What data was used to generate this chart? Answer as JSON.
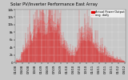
{
  "title": "Solar PV/Inverter Performance East Array",
  "legend_actual": "Actual Power Output",
  "legend_avg": "avg. daily",
  "bg_color": "#c8c8c8",
  "plot_bg": "#c8c8c8",
  "bar_color": "#dd0000",
  "avg_color": "#4444ff",
  "avg_dot_color": "#ff4444",
  "ylim": [
    0,
    14000
  ],
  "ytick_vals": [
    0,
    2000,
    4000,
    6000,
    8000,
    10000,
    12000,
    14000
  ],
  "ytick_labels": [
    "0",
    "2k",
    "4k",
    "6k",
    "8k",
    "10k",
    "12k",
    "14k"
  ],
  "title_fontsize": 3.8,
  "tick_fontsize": 2.8,
  "legend_fontsize": 2.5,
  "num_points": 520,
  "grid_color": "#ffffff",
  "figsize": [
    1.6,
    1.0
  ],
  "dpi": 100
}
